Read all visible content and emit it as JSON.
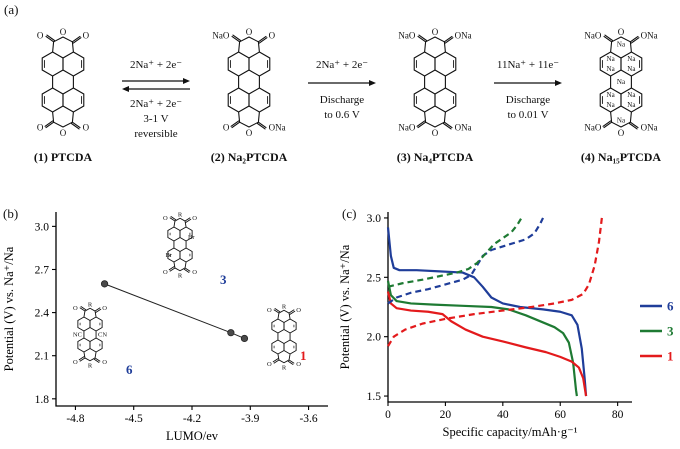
{
  "figure": {
    "background": "#ffffff",
    "panel_a_label": "(a)",
    "panel_b_label": "(b)",
    "panel_c_label": "(c)"
  },
  "panel_a": {
    "structures": [
      {
        "caption": "(1) PTCDA",
        "labels": {
          "tl": "O",
          "tc": "O",
          "tr": "O",
          "bl": "O",
          "bc": "O",
          "br": "O"
        },
        "inner_na": 0
      },
      {
        "caption": "(2) Na₂PTCDA",
        "labels": {
          "tl": "NaO",
          "tc": "O",
          "tr": "O",
          "bl": "O",
          "bc": "O",
          "br": "ONa"
        },
        "inner_na": 0
      },
      {
        "caption": "(3) Na₄PTCDA",
        "labels": {
          "tl": "NaO",
          "tc": "O",
          "tr": "ONa",
          "bl": "NaO",
          "bc": "O",
          "br": "ONa"
        },
        "inner_na": 0
      },
      {
        "caption": "(4) Na₁₅PTCDA",
        "labels": {
          "tl": "NaO",
          "tc": "O",
          "tr": "ONa",
          "bl": "NaO",
          "bc": "O",
          "br": "ONa"
        },
        "inner_na": 11
      }
    ],
    "arrows": [
      {
        "above": "2Na⁺ + 2e⁻",
        "below1": "2Na⁺ + 2e⁻",
        "below2": "3-1 V",
        "below3": "reversible",
        "reversible": true
      },
      {
        "above": "2Na⁺ + 2e⁻",
        "below1": "Discharge",
        "below2": "to 0.6 V",
        "below3": "",
        "reversible": false
      },
      {
        "above": "11Na⁺ + 11e⁻",
        "below1": "Discharge",
        "below2": "to 0.01 V",
        "below3": "",
        "reversible": false
      }
    ]
  },
  "panel_b": {
    "insets": [
      {
        "num": "3",
        "num_color": "#1f3d99",
        "labels": {
          "tl": "O",
          "tc": "R",
          "tr": "O",
          "bl": "O",
          "bc": "R",
          "br": "O"
        },
        "side": {
          "l": "Br",
          "r": "Br"
        }
      },
      {
        "num": "6",
        "num_color": "#1f3d99",
        "labels": {
          "tl": "O",
          "tc": "R",
          "tr": "O",
          "bl": "O",
          "bc": "R",
          "br": "O"
        },
        "side": {
          "l": "NC",
          "r": "CN"
        }
      },
      {
        "num": "1",
        "num_color": "#e31a1c",
        "labels": {
          "tl": "O",
          "tc": "R",
          "tr": "O",
          "bl": "O",
          "bc": "R",
          "br": "O"
        },
        "side": {
          "l": "",
          "r": ""
        }
      }
    ]
  },
  "chart_data": [
    {
      "id": "panel_b",
      "type": "scatter",
      "title": "",
      "xlabel": "LUMO/ev",
      "ylabel": "Potential (V) vs. Na⁺/Na",
      "xlim": [
        -4.9,
        -3.5
      ],
      "ylim": [
        1.75,
        3.1
      ],
      "xticks": [
        -4.8,
        -4.5,
        -4.2,
        -3.9,
        -3.6
      ],
      "xtick_labels": [
        "-4.8",
        "-4.5",
        "-4.2",
        "-3.9",
        "-3.6"
      ],
      "yticks": [
        1.8,
        2.1,
        2.4,
        2.7,
        3.0
      ],
      "ytick_labels": [
        "1.8",
        "2.1",
        "2.4",
        "2.7",
        "3.0"
      ],
      "grid": false,
      "connected": true,
      "points": [
        {
          "x": -4.65,
          "y": 2.6,
          "label": "6"
        },
        {
          "x": -4.0,
          "y": 2.26,
          "label": "3"
        },
        {
          "x": -3.93,
          "y": 2.22,
          "label": "1"
        }
      ]
    },
    {
      "id": "panel_c",
      "type": "line",
      "title": "",
      "xlabel": "Specific capacity/mAh·g⁻¹",
      "ylabel": "Potential (V) vs. Na⁺/Na",
      "xlim": [
        0,
        85
      ],
      "ylim": [
        1.45,
        3.05
      ],
      "xticks": [
        0,
        20,
        40,
        60,
        80
      ],
      "xtick_labels": [
        "0",
        "20",
        "40",
        "60",
        "80"
      ],
      "yticks": [
        1.5,
        2.0,
        2.5,
        3.0
      ],
      "ytick_labels": [
        "1.5",
        "2.0",
        "2.5",
        "3.0"
      ],
      "grid": false,
      "legend_position": "right",
      "series": [
        {
          "name": "6 discharge",
          "color": "#1f3d99",
          "dashed": false,
          "points": [
            [
              0,
              2.92
            ],
            [
              1,
              2.68
            ],
            [
              2,
              2.58
            ],
            [
              4,
              2.56
            ],
            [
              10,
              2.56
            ],
            [
              18,
              2.55
            ],
            [
              26,
              2.54
            ],
            [
              30,
              2.5
            ],
            [
              33,
              2.42
            ],
            [
              36,
              2.33
            ],
            [
              40,
              2.28
            ],
            [
              46,
              2.25
            ],
            [
              54,
              2.23
            ],
            [
              60,
              2.21
            ],
            [
              64,
              2.18
            ],
            [
              66,
              2.1
            ],
            [
              67.5,
              1.9
            ],
            [
              68.5,
              1.65
            ],
            [
              69,
              1.5
            ]
          ]
        },
        {
          "name": "3 discharge",
          "color": "#1e7a33",
          "dashed": false,
          "points": [
            [
              0,
              2.47
            ],
            [
              1,
              2.35
            ],
            [
              3,
              2.3
            ],
            [
              8,
              2.28
            ],
            [
              16,
              2.27
            ],
            [
              26,
              2.26
            ],
            [
              36,
              2.25
            ],
            [
              42,
              2.23
            ],
            [
              48,
              2.18
            ],
            [
              54,
              2.12
            ],
            [
              58,
              2.08
            ],
            [
              61,
              2.03
            ],
            [
              63,
              1.95
            ],
            [
              64.5,
              1.78
            ],
            [
              65.5,
              1.55
            ],
            [
              65.8,
              1.5
            ]
          ]
        },
        {
          "name": "1 discharge",
          "color": "#e31a1c",
          "dashed": false,
          "points": [
            [
              0,
              2.38
            ],
            [
              1,
              2.28
            ],
            [
              3,
              2.24
            ],
            [
              8,
              2.22
            ],
            [
              14,
              2.21
            ],
            [
              19,
              2.19
            ],
            [
              22,
              2.13
            ],
            [
              27,
              2.06
            ],
            [
              33,
              2.0
            ],
            [
              40,
              1.96
            ],
            [
              48,
              1.91
            ],
            [
              55,
              1.87
            ],
            [
              60,
              1.83
            ],
            [
              64,
              1.79
            ],
            [
              66.5,
              1.74
            ],
            [
              68,
              1.65
            ],
            [
              69,
              1.5
            ]
          ]
        },
        {
          "name": "6 charge",
          "color": "#1f3d99",
          "dashed": true,
          "points": [
            [
              0,
              2.28
            ],
            [
              3,
              2.33
            ],
            [
              8,
              2.37
            ],
            [
              14,
              2.4
            ],
            [
              20,
              2.44
            ],
            [
              26,
              2.48
            ],
            [
              29,
              2.52
            ],
            [
              31,
              2.6
            ],
            [
              33,
              2.68
            ],
            [
              36,
              2.73
            ],
            [
              40,
              2.76
            ],
            [
              44,
              2.79
            ],
            [
              48,
              2.82
            ],
            [
              51,
              2.87
            ],
            [
              53,
              2.95
            ],
            [
              54,
              3.0
            ]
          ]
        },
        {
          "name": "3 charge",
          "color": "#1e7a33",
          "dashed": true,
          "points": [
            [
              0,
              2.42
            ],
            [
              5,
              2.45
            ],
            [
              12,
              2.48
            ],
            [
              18,
              2.51
            ],
            [
              24,
              2.54
            ],
            [
              28,
              2.57
            ],
            [
              31,
              2.62
            ],
            [
              34,
              2.7
            ],
            [
              37,
              2.78
            ],
            [
              40,
              2.83
            ],
            [
              43,
              2.88
            ],
            [
              45,
              2.94
            ],
            [
              46.5,
              3.0
            ]
          ]
        },
        {
          "name": "1 charge",
          "color": "#e31a1c",
          "dashed": true,
          "points": [
            [
              0,
              1.92
            ],
            [
              2,
              2.0
            ],
            [
              6,
              2.06
            ],
            [
              12,
              2.11
            ],
            [
              20,
              2.15
            ],
            [
              30,
              2.19
            ],
            [
              40,
              2.22
            ],
            [
              50,
              2.25
            ],
            [
              58,
              2.28
            ],
            [
              64,
              2.31
            ],
            [
              68,
              2.36
            ],
            [
              70,
              2.44
            ],
            [
              72,
              2.6
            ],
            [
              73.5,
              2.8
            ],
            [
              74.5,
              3.0
            ]
          ]
        }
      ],
      "legend": [
        {
          "label": "6",
          "color": "#1f3d99"
        },
        {
          "label": "3",
          "color": "#1e7a33"
        },
        {
          "label": "1",
          "color": "#e31a1c"
        }
      ]
    }
  ]
}
